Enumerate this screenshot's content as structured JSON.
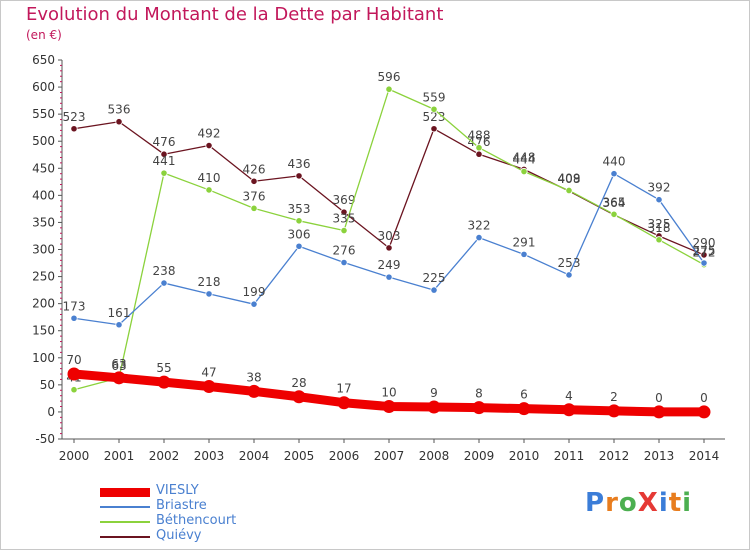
{
  "header": {
    "title": "Evolution du Montant de la Dette par Habitant",
    "unit": "(en €)"
  },
  "logo": {
    "text": "ProXiti",
    "colors": [
      "#3b7dd8",
      "#e87d1e",
      "#4caf50",
      "#e53935",
      "#3b7dd8",
      "#e87d1e",
      "#4caf50"
    ]
  },
  "chart_data": {
    "type": "line",
    "title": "Evolution du Montant de la Dette par Habitant",
    "ylabel": "(en €)",
    "x": [
      "2000",
      "2001",
      "2002",
      "2003",
      "2004",
      "2005",
      "2006",
      "2007",
      "2008",
      "2009",
      "2010",
      "2011",
      "2012",
      "2013",
      "2014"
    ],
    "ylim": [
      -50,
      650
    ],
    "yticks": [
      -50,
      0,
      50,
      100,
      150,
      200,
      250,
      300,
      350,
      400,
      450,
      500,
      550,
      600,
      650
    ],
    "grid": false,
    "legend_position": "bottom-left",
    "series": [
      {
        "name": "Quiévy",
        "color": "#6b1420",
        "values": [
          523,
          536,
          476,
          492,
          426,
          436,
          369,
          303,
          523,
          476,
          448,
          408,
          364,
          325,
          290
        ]
      },
      {
        "name": "Béthencourt",
        "color": "#8bd23c",
        "values": [
          41,
          63,
          441,
          410,
          376,
          353,
          335,
          596,
          559,
          488,
          444,
          409,
          365,
          318,
          272
        ]
      },
      {
        "name": "Briastre",
        "color": "#4a80d0",
        "values": [
          173,
          161,
          238,
          218,
          199,
          306,
          276,
          249,
          225,
          322,
          291,
          253,
          440,
          392,
          275
        ]
      },
      {
        "name": "VIESLY",
        "color": "#ee0000",
        "values": [
          70,
          63,
          55,
          47,
          38,
          28,
          17,
          10,
          9,
          8,
          6,
          4,
          2,
          0,
          0
        ]
      }
    ],
    "legend": [
      {
        "name": "VIESLY",
        "color": "#ee0000"
      },
      {
        "name": "Briastre",
        "color": "#4a80d0"
      },
      {
        "name": "Béthencourt",
        "color": "#8bd23c"
      },
      {
        "name": "Quiévy",
        "color": "#6b1420"
      }
    ]
  }
}
